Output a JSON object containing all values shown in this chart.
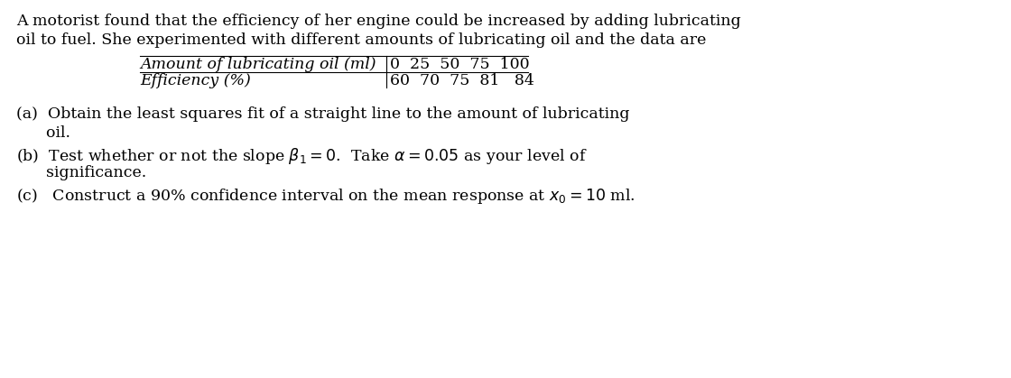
{
  "bg_color": "#ffffff",
  "text_color": "#000000",
  "font_family": "DejaVu Serif",
  "fontsize": 12.5,
  "intro_line1": "A motorist found that the efficiency of her engine could be increased by adding lubricating",
  "intro_line2": "oil to fuel. She experimented with different amounts of lubricating oil and the data are",
  "table_left_label1": "Amount of lubricating oil (ml)",
  "table_left_label2": "Efficiency (%)",
  "table_right_values1": "0  25  50  75  100",
  "table_right_values2": "60  70  75  81   84",
  "part_a_l1": "(a)  Obtain the least squares fit of a straight line to the amount of lubricating",
  "part_a_l2": "      oil.",
  "part_c": "(c)   Construct a 90% confidence interval on the mean response at $x_0 = 10$ ml."
}
